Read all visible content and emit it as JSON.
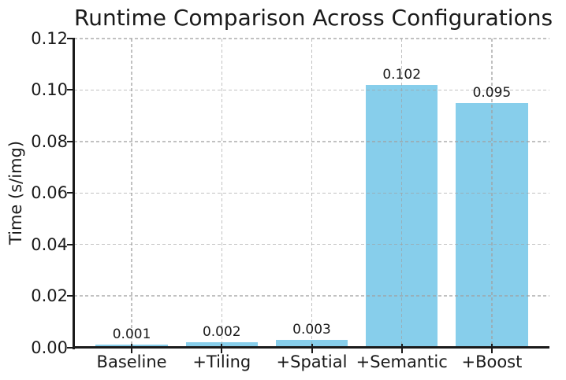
{
  "chart_data": {
    "type": "bar",
    "title": "Runtime Comparison Across Configurations",
    "xlabel": "",
    "ylabel": "Time (s/img)",
    "categories": [
      "Baseline",
      "+Tiling",
      "+Spatial",
      "+Semantic",
      "+Boost"
    ],
    "values": [
      0.001,
      0.002,
      0.003,
      0.102,
      0.095
    ],
    "bar_value_labels": [
      "0.001",
      "0.002",
      "0.003",
      "0.102",
      "0.095"
    ],
    "ylim": [
      0.0,
      0.12
    ],
    "yticks": [
      0.0,
      0.02,
      0.04,
      0.06,
      0.08,
      0.1,
      0.12
    ],
    "ytick_labels": [
      "0.00",
      "0.02",
      "0.04",
      "0.06",
      "0.08",
      "0.10",
      "0.12"
    ],
    "grid": true,
    "grid_style": "dashed",
    "grid_axis": "both",
    "legend": null,
    "colors": {
      "bar": "#87CEEB",
      "axis": "#1a1a1a",
      "grid": "#b0b0b0",
      "text": "#1a1a1a",
      "background": "#ffffff"
    }
  }
}
